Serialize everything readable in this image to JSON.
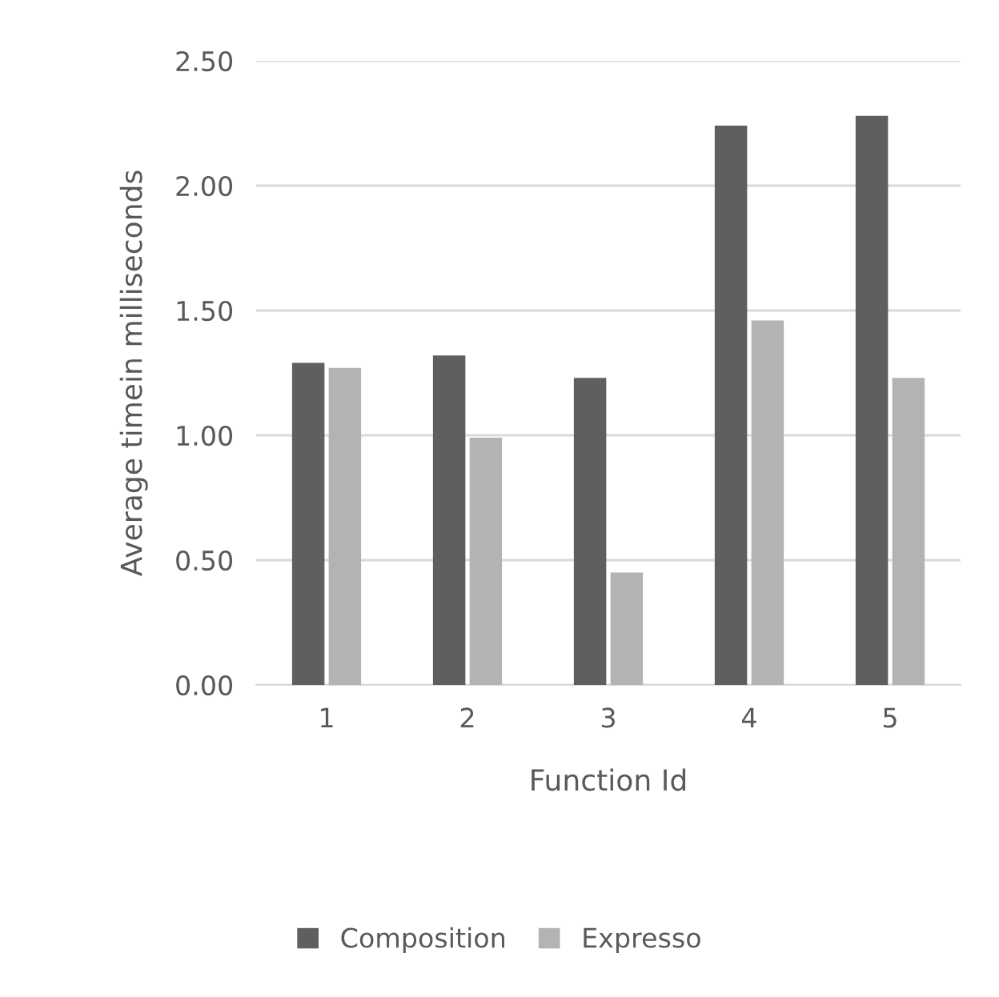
{
  "chart_data": {
    "type": "bar",
    "xlabel": "Function Id",
    "ylabel": "Average timein milliseconds",
    "categories": [
      "1",
      "2",
      "3",
      "4",
      "5"
    ],
    "series": [
      {
        "name": "Composition",
        "color": "#5f5f5f",
        "values": [
          1.29,
          1.32,
          1.23,
          2.24,
          2.28
        ]
      },
      {
        "name": "Expresso",
        "color": "#b3b3b3",
        "values": [
          1.27,
          0.99,
          0.45,
          1.46,
          1.23
        ]
      }
    ],
    "ylim": [
      0,
      2.5
    ],
    "yticks": [
      {
        "value": 0,
        "label": "0.00"
      },
      {
        "value": 0.5,
        "label": "0.50"
      },
      {
        "value": 1.0,
        "label": "1.00"
      },
      {
        "value": 1.5,
        "label": "1.50"
      },
      {
        "value": 2.0,
        "label": "2.00"
      },
      {
        "value": 2.5,
        "label": "2.50"
      }
    ],
    "grid": "y",
    "legend": "bottom"
  }
}
